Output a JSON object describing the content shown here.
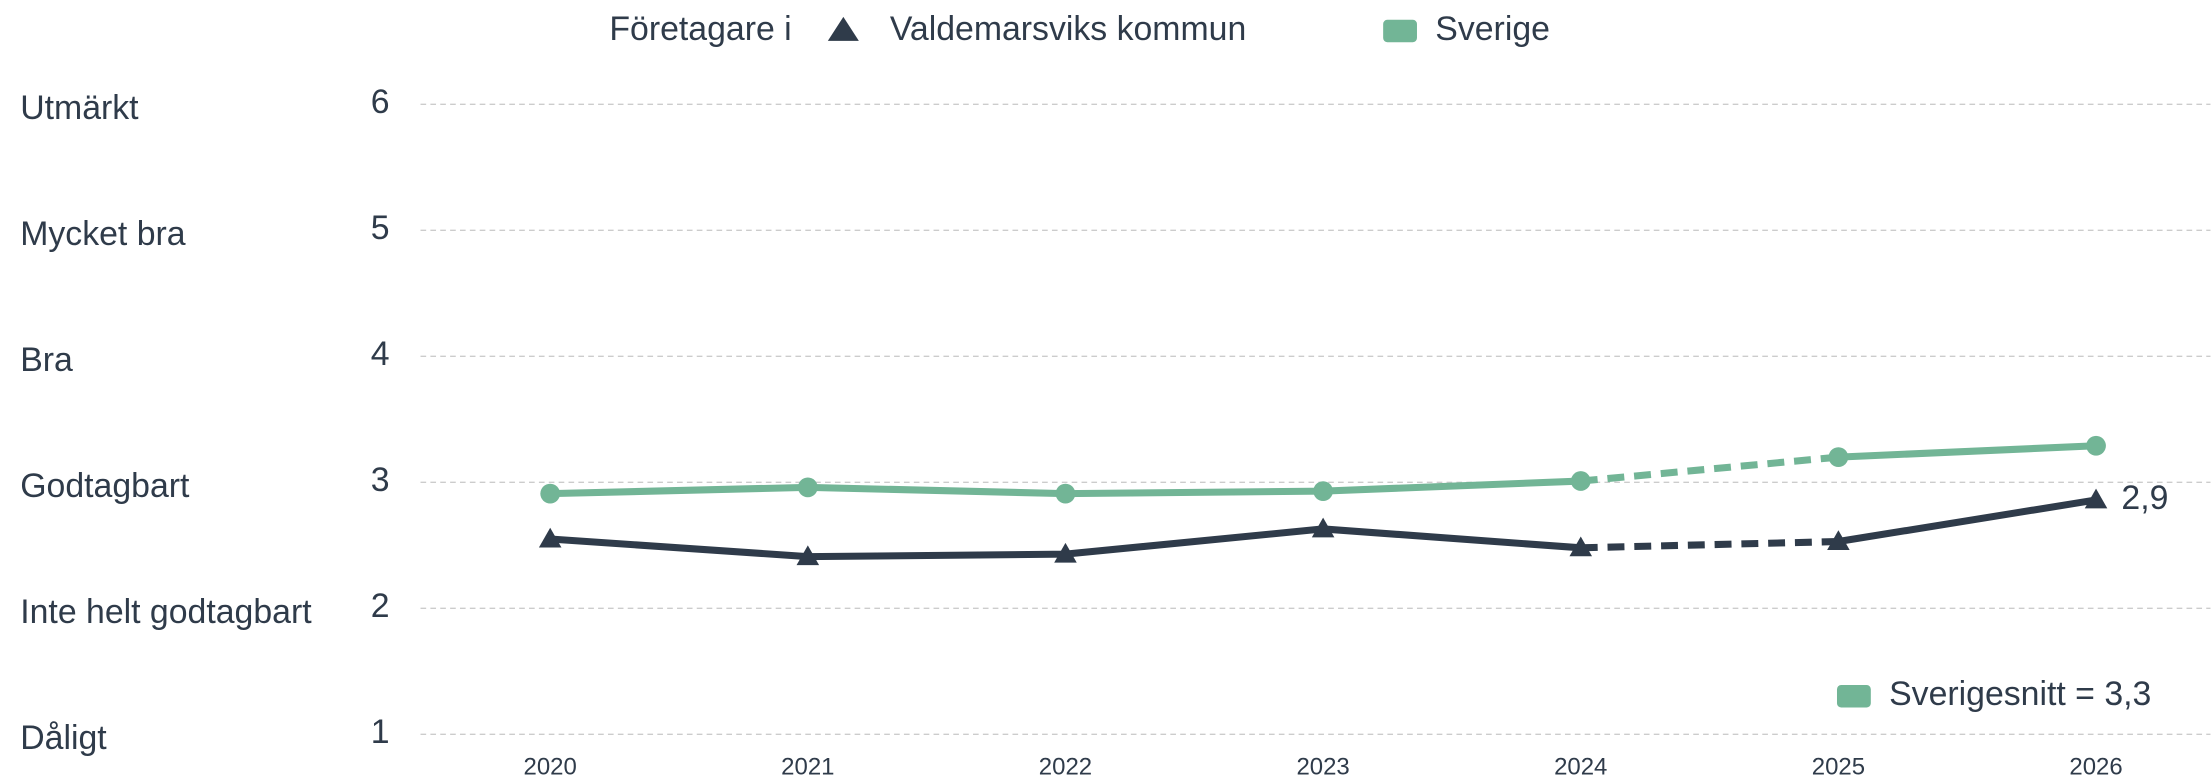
{
  "chart_data": {
    "type": "line",
    "legend_title": "Företagare i",
    "categories": [
      "2020",
      "2021",
      "2022",
      "2023",
      "2024",
      "2025",
      "2026"
    ],
    "series": [
      {
        "name": "Valdemarsviks kommun",
        "color": "#2f3b4a",
        "marker": "triangle",
        "values": [
          2.55,
          2.41,
          2.43,
          2.63,
          2.48,
          2.53,
          2.86
        ],
        "value_labels": [
          null,
          null,
          null,
          null,
          null,
          null,
          "2,9"
        ]
      },
      {
        "name": "Sverige",
        "color": "#72b596",
        "marker": "circle",
        "values": [
          2.91,
          2.96,
          2.91,
          2.93,
          3.01,
          3.2,
          3.29
        ]
      }
    ],
    "dashed_segment": [
      4,
      5
    ],
    "ylim": [
      1,
      6
    ],
    "yticks": [
      1,
      2,
      3,
      4,
      5,
      6
    ],
    "ytick_names": [
      "Dåligt",
      "Inte helt godtagbart",
      "Godtagbart",
      "Bra",
      "Mycket bra",
      "Utmärkt"
    ],
    "grid": true,
    "annotation": "Sverigesnitt = 3,3"
  }
}
